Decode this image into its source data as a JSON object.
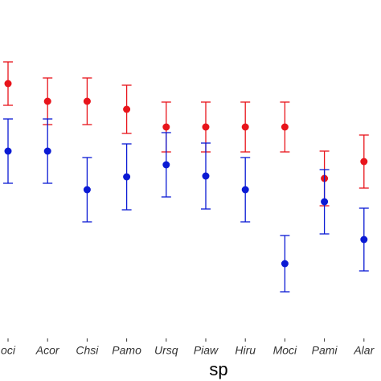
{
  "chart_data": {
    "type": "errorbar",
    "x_label": "sp",
    "categories": [
      "oci",
      "Acor",
      "Chsi",
      "Pamo",
      "Ursq",
      "Piaw",
      "Hiru",
      "Moci",
      "Pami",
      "Alar"
    ],
    "ylim": [
      0,
      400
    ],
    "series": [
      {
        "color": "#e8141b",
        "values": [
          296,
          274,
          274,
          264,
          242,
          242,
          242,
          242,
          178,
          199
        ],
        "errors": [
          27,
          29,
          29,
          30,
          31,
          31,
          31,
          31,
          34,
          33
        ]
      },
      {
        "color": "#0a1ad4",
        "values": [
          212,
          212,
          164,
          180,
          195,
          181,
          164,
          72,
          149,
          102
        ],
        "errors": [
          40,
          40,
          40,
          41,
          40,
          41,
          40,
          35,
          40,
          39
        ]
      }
    ]
  }
}
